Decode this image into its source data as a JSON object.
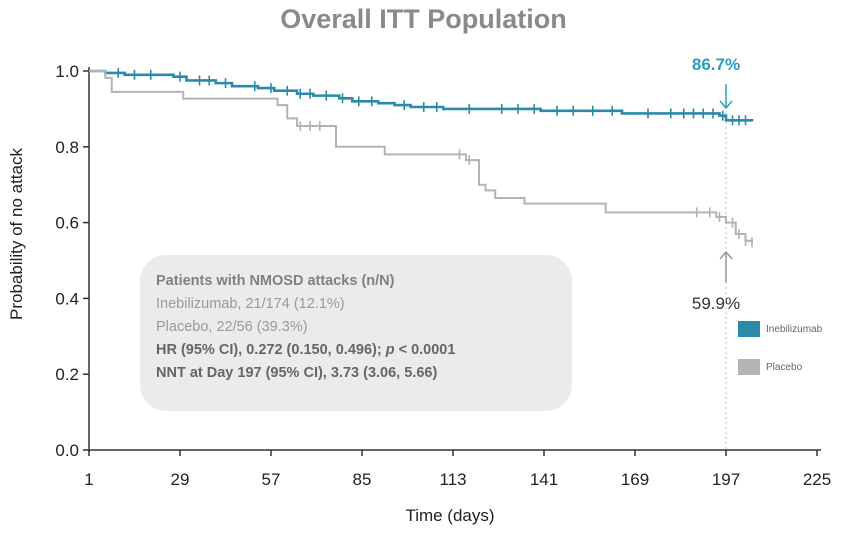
{
  "chart_data": {
    "type": "line",
    "title": "Overall ITT Population",
    "xlabel": "Time (days)",
    "ylabel": "Probability of no attack",
    "xlim": [
      1,
      225
    ],
    "ylim": [
      0,
      1
    ],
    "x_ticks": [
      1,
      29,
      57,
      85,
      113,
      141,
      169,
      197,
      225
    ],
    "x_tick_labels": [
      "1",
      "29",
      "57",
      "85",
      "113",
      "141",
      "169",
      "197",
      "225"
    ],
    "y_ticks": [
      0,
      0.2,
      0.4,
      0.6,
      0.8,
      1.0
    ],
    "y_tick_labels": [
      "0.0",
      "0.2",
      "0.4",
      "0.6",
      "0.8",
      "1.0"
    ],
    "series": [
      {
        "name": "Inebilizumab",
        "color": "#2b8aa8",
        "steps": [
          [
            1,
            1.0
          ],
          [
            6,
            0.995
          ],
          [
            12,
            0.99
          ],
          [
            27,
            0.985
          ],
          [
            31,
            0.975
          ],
          [
            40,
            0.968
          ],
          [
            45,
            0.96
          ],
          [
            53,
            0.955
          ],
          [
            58,
            0.948
          ],
          [
            65,
            0.94
          ],
          [
            70,
            0.935
          ],
          [
            78,
            0.928
          ],
          [
            82,
            0.92
          ],
          [
            90,
            0.915
          ],
          [
            95,
            0.91
          ],
          [
            100,
            0.905
          ],
          [
            110,
            0.9
          ],
          [
            140,
            0.895
          ],
          [
            165,
            0.888
          ],
          [
            195,
            0.882
          ],
          [
            197,
            0.87
          ],
          [
            205,
            0.867
          ]
        ],
        "censor_x": [
          10,
          15,
          20,
          29,
          35,
          38,
          43,
          52,
          57,
          62,
          66,
          69,
          74,
          79,
          84,
          88,
          98,
          104,
          108,
          118,
          128,
          133,
          138,
          145,
          150,
          156,
          162,
          173,
          180,
          184,
          187,
          190,
          193,
          196,
          199,
          201,
          203
        ]
      },
      {
        "name": "Placebo",
        "color": "#b3b3b3",
        "steps": [
          [
            1,
            1.0
          ],
          [
            6,
            0.982
          ],
          [
            8,
            0.945
          ],
          [
            30,
            0.927
          ],
          [
            59,
            0.91
          ],
          [
            62,
            0.875
          ],
          [
            65,
            0.855
          ],
          [
            77,
            0.8
          ],
          [
            92,
            0.78
          ],
          [
            117,
            0.765
          ],
          [
            121,
            0.7
          ],
          [
            123,
            0.685
          ],
          [
            126,
            0.665
          ],
          [
            135,
            0.65
          ],
          [
            160,
            0.627
          ],
          [
            194,
            0.615
          ],
          [
            197,
            0.6
          ],
          [
            200,
            0.57
          ],
          [
            203,
            0.552
          ],
          [
            205,
            0.548
          ]
        ],
        "censor_x": [
          66,
          69,
          72,
          115,
          118,
          188,
          192,
          195,
          199,
          201,
          203,
          205
        ]
      }
    ],
    "annotations": {
      "inebilizumab_value": "86.7%",
      "placebo_value": "59.9%"
    },
    "reference_line_x": 197,
    "legend": [
      "Inebilizumab",
      "Placebo"
    ]
  },
  "infobox": {
    "heading": "Patients with NMOSD attacks (n/N)",
    "line1": "Inebilizumab, 21/174 (12.1%)",
    "line2": "Placebo, 22/56 (39.3%)",
    "line3_prefix": "HR (95% CI), 0.272 (0.150, 0.496); ",
    "line3_p": "p",
    "line3_suffix": " < 0.0001",
    "line4": "NNT at Day 197 (95% CI), 3.73 (3.06, 5.66)"
  },
  "colors": {
    "inebilizumab": "#2b8aa8",
    "placebo": "#b3b3b3",
    "annotation_green": "#2a9ec0"
  }
}
